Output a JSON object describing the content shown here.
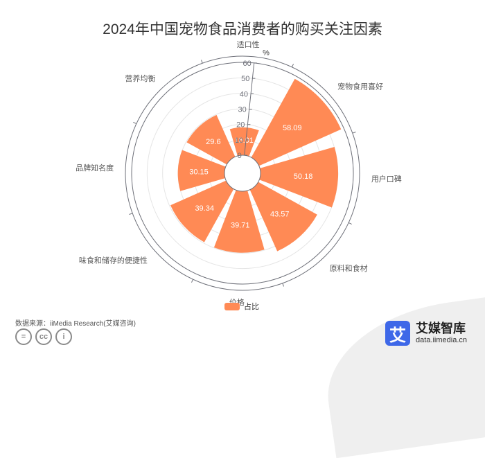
{
  "chart_data": {
    "type": "bar",
    "title": "2024年中国宠物食品消费者的购买关注因素",
    "unit": "%",
    "categories": [
      "适口性",
      "宠物食用喜好",
      "用户口碑",
      "原料和食材",
      "价格",
      "味食和储存的便捷性",
      "品牌知名度",
      "营养均衡"
    ],
    "series": [
      {
        "name": "占比",
        "values": [
          18.01,
          58.09,
          50.18,
          43.57,
          39.71,
          39.34,
          30.15,
          29.6
        ]
      }
    ],
    "radial_ticks": [
      0,
      10,
      20,
      30,
      40,
      50,
      60
    ],
    "ylim": [
      0,
      60
    ],
    "legend_position": "bottom",
    "colors": {
      "bar": "#ff8a55",
      "axis": "#6e7079",
      "grid": "#e5e5e5"
    }
  },
  "source": "数据来源：iiMedia Research(艾媒咨询)",
  "brand": {
    "logo_char": "艾",
    "name": "艾媒智库",
    "url": "data.iimedia.cn"
  },
  "license_icons": [
    "=",
    "cc",
    "i"
  ]
}
